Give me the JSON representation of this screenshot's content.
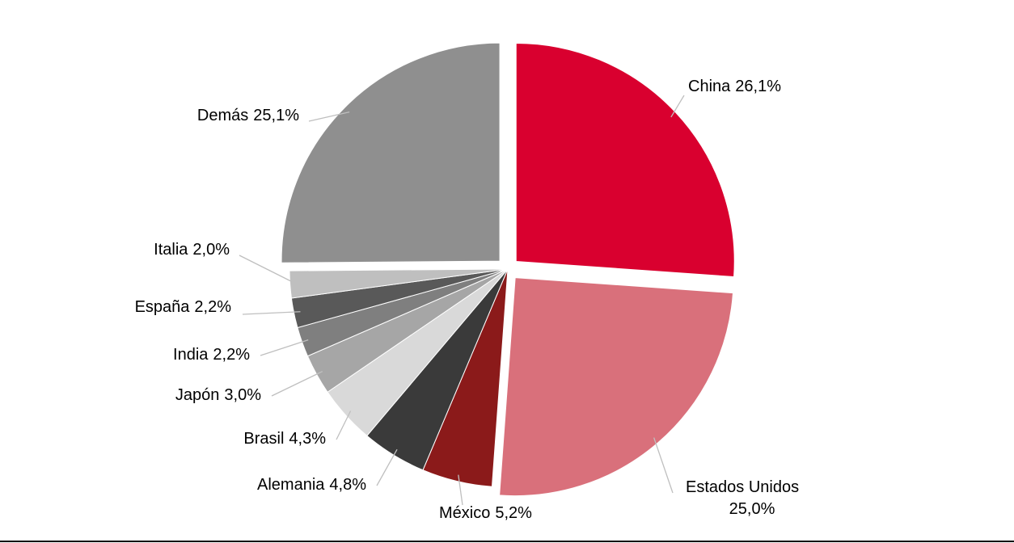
{
  "chart_data": {
    "type": "pie",
    "categories": [
      "China",
      "Estados Unidos",
      "México",
      "Alemania",
      "Brasil",
      "Japón",
      "India",
      "España",
      "Italia",
      "Demás"
    ],
    "values": [
      26.1,
      25.0,
      5.2,
      4.8,
      4.3,
      3.0,
      2.2,
      2.2,
      2.0,
      25.1
    ],
    "value_labels": [
      "26,1%",
      "25,0%",
      "5,2%",
      "4,8%",
      "4,3%",
      "3,0%",
      "2,2%",
      "2,2%",
      "2,0%",
      "25,1%"
    ],
    "colors": [
      "#d9002f",
      "#d9707b",
      "#8b1a1a",
      "#3a3a3a",
      "#d9d9d9",
      "#a6a6a6",
      "#7f7f7f",
      "#595959",
      "#bfbfbf",
      "#8f8f8f"
    ],
    "exploded": [
      true,
      true,
      false,
      false,
      false,
      false,
      false,
      false,
      false,
      true
    ]
  }
}
